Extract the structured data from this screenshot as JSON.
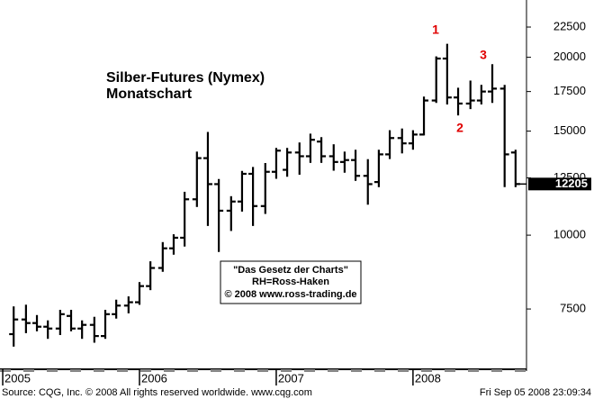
{
  "chart_data": {
    "type": "ohlc",
    "title": "Silber-Futures (Nymex)",
    "subtitle": "Monatschart",
    "annotations": [
      "1",
      "2",
      "3"
    ],
    "note": [
      "\"Das Gesetz der Charts\"",
      "RH=Ross-Haken",
      "© 2008 www.ross-trading.de"
    ],
    "source": "Source: CQG, Inc. © 2008 All rights reserved worldwide. www.cqg.com",
    "timestamp": "Fri Sep 05 2008 23:09:34",
    "last_value": 12205,
    "log_y": true,
    "color": "#000000",
    "xlim": [
      2004.98,
      2008.83
    ],
    "xticks": [
      2005,
      2006,
      2007,
      2008
    ],
    "ylim": [
      5930,
      25000
    ],
    "yticks": [
      7500,
      10000,
      12500,
      15000,
      17500,
      20000,
      22500
    ],
    "x": [
      2005.08,
      2005.17,
      2005.25,
      2005.33,
      2005.42,
      2005.5,
      2005.58,
      2005.67,
      2005.75,
      2005.83,
      2005.92,
      2006.0,
      2006.08,
      2006.17,
      2006.25,
      2006.33,
      2006.42,
      2006.5,
      2006.58,
      2006.67,
      2006.75,
      2006.83,
      2006.92,
      2007.0,
      2007.08,
      2007.17,
      2007.25,
      2007.33,
      2007.42,
      2007.5,
      2007.58,
      2007.67,
      2007.75,
      2007.83,
      2007.92,
      2008.0,
      2008.08,
      2008.17,
      2008.25,
      2008.33,
      2008.42,
      2008.5,
      2008.58,
      2008.67,
      2008.75
    ],
    "open": [
      6800,
      7200,
      7100,
      7000,
      6950,
      7300,
      6950,
      7050,
      6750,
      7350,
      7600,
      7700,
      8200,
      8800,
      9500,
      9900,
      11500,
      13500,
      12200,
      11000,
      11400,
      12700,
      11200,
      12800,
      12900,
      13800,
      13600,
      14400,
      13600,
      13300,
      13400,
      12600,
      12300,
      13700,
      14600,
      14300,
      14800,
      16900,
      19900,
      17100,
      16700,
      16900,
      17500,
      17700,
      13800
    ],
    "high": [
      7550,
      7600,
      7300,
      7150,
      7450,
      7450,
      7150,
      7250,
      7450,
      7750,
      7850,
      8300,
      9000,
      9700,
      10000,
      11800,
      13800,
      14900,
      12400,
      11600,
      12800,
      13000,
      13200,
      14000,
      14000,
      14300,
      14800,
      14600,
      14200,
      13800,
      13900,
      13400,
      13900,
      15000,
      15100,
      15000,
      17100,
      20000,
      21000,
      17700,
      18200,
      17900,
      19400,
      17900,
      13900
    ],
    "low": [
      6500,
      6850,
      6900,
      6700,
      6800,
      6900,
      6700,
      6600,
      6700,
      7250,
      7400,
      7650,
      8100,
      8700,
      9300,
      9600,
      11200,
      10400,
      9400,
      10200,
      11000,
      10400,
      10900,
      12500,
      12600,
      12700,
      13300,
      13300,
      12900,
      12800,
      12400,
      11300,
      12100,
      13500,
      13800,
      14000,
      14800,
      16800,
      16700,
      16000,
      16400,
      16700,
      16800,
      12100,
      12100
    ],
    "close": [
      7200,
      7100,
      7000,
      6950,
      7350,
      6950,
      7050,
      6750,
      7350,
      7600,
      7700,
      8200,
      8800,
      9500,
      9900,
      11500,
      13500,
      12200,
      11000,
      11400,
      12700,
      11200,
      12800,
      13900,
      13800,
      13600,
      14500,
      13600,
      13300,
      13400,
      12600,
      12200,
      13700,
      14600,
      14300,
      14800,
      16900,
      19900,
      17100,
      16700,
      16900,
      17500,
      17700,
      13700,
      12205
    ]
  }
}
